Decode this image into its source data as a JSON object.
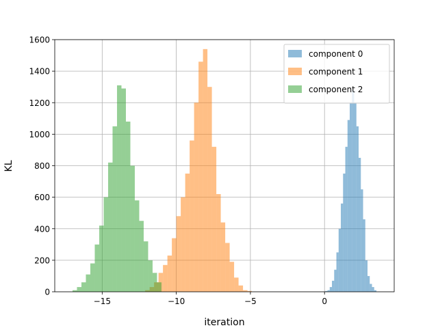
{
  "chart_data": {
    "type": "bar",
    "title": "",
    "xlabel": "iteration",
    "ylabel": "KL",
    "xlim": [
      -18.2,
      4.7
    ],
    "ylim": [
      0,
      1600
    ],
    "xticks": [
      -15,
      -10,
      -5,
      0
    ],
    "xtick_labels": [
      "−15",
      "−10",
      "−5",
      "0"
    ],
    "yticks": [
      0,
      200,
      400,
      600,
      800,
      1000,
      1200,
      1400,
      1600
    ],
    "ytick_labels": [
      "0",
      "200",
      "400",
      "600",
      "800",
      "1000",
      "1200",
      "1400",
      "1600"
    ],
    "grid": true,
    "legend_position": "top-right",
    "series": [
      {
        "name": "component 0",
        "color": "#1f77b4",
        "alpha": 0.5,
        "bin_edges": [
          0.05,
          0.2,
          0.35,
          0.5,
          0.65,
          0.8,
          0.95,
          1.1,
          1.25,
          1.4,
          1.55,
          1.7,
          1.85,
          2.0,
          2.15,
          2.3,
          2.45,
          2.6,
          2.75,
          2.9,
          3.05,
          3.2,
          3.35,
          3.5
        ],
        "counts": [
          5,
          10,
          30,
          70,
          140,
          250,
          400,
          560,
          750,
          920,
          1090,
          1200,
          1280,
          1200,
          1050,
          850,
          650,
          460,
          200,
          100,
          50,
          30,
          10
        ]
      },
      {
        "name": "component 1",
        "color": "#ff7f0e",
        "alpha": 0.5,
        "bin_edges": [
          -12.1,
          -11.8,
          -11.5,
          -11.2,
          -10.9,
          -10.6,
          -10.3,
          -10.0,
          -9.7,
          -9.4,
          -9.1,
          -8.8,
          -8.5,
          -8.2,
          -7.9,
          -7.6,
          -7.3,
          -7.0,
          -6.7,
          -6.4,
          -6.1,
          -5.8,
          -5.5,
          -5.2,
          -4.9
        ],
        "counts": [
          10,
          30,
          60,
          120,
          170,
          230,
          340,
          480,
          600,
          750,
          960,
          1200,
          1460,
          1540,
          1300,
          920,
          620,
          440,
          310,
          190,
          90,
          40,
          10,
          5
        ]
      },
      {
        "name": "component 2",
        "color": "#2ca02c",
        "alpha": 0.5,
        "bin_edges": [
          -17.0,
          -16.7,
          -16.4,
          -16.1,
          -15.8,
          -15.5,
          -15.2,
          -14.9,
          -14.6,
          -14.3,
          -14.0,
          -13.7,
          -13.4,
          -13.1,
          -12.8,
          -12.5,
          -12.2,
          -11.9,
          -11.6,
          -11.3,
          -11.0
        ],
        "counts": [
          10,
          30,
          60,
          110,
          180,
          300,
          420,
          600,
          820,
          1050,
          1310,
          1290,
          1080,
          800,
          580,
          450,
          320,
          200,
          120,
          60
        ]
      }
    ]
  }
}
